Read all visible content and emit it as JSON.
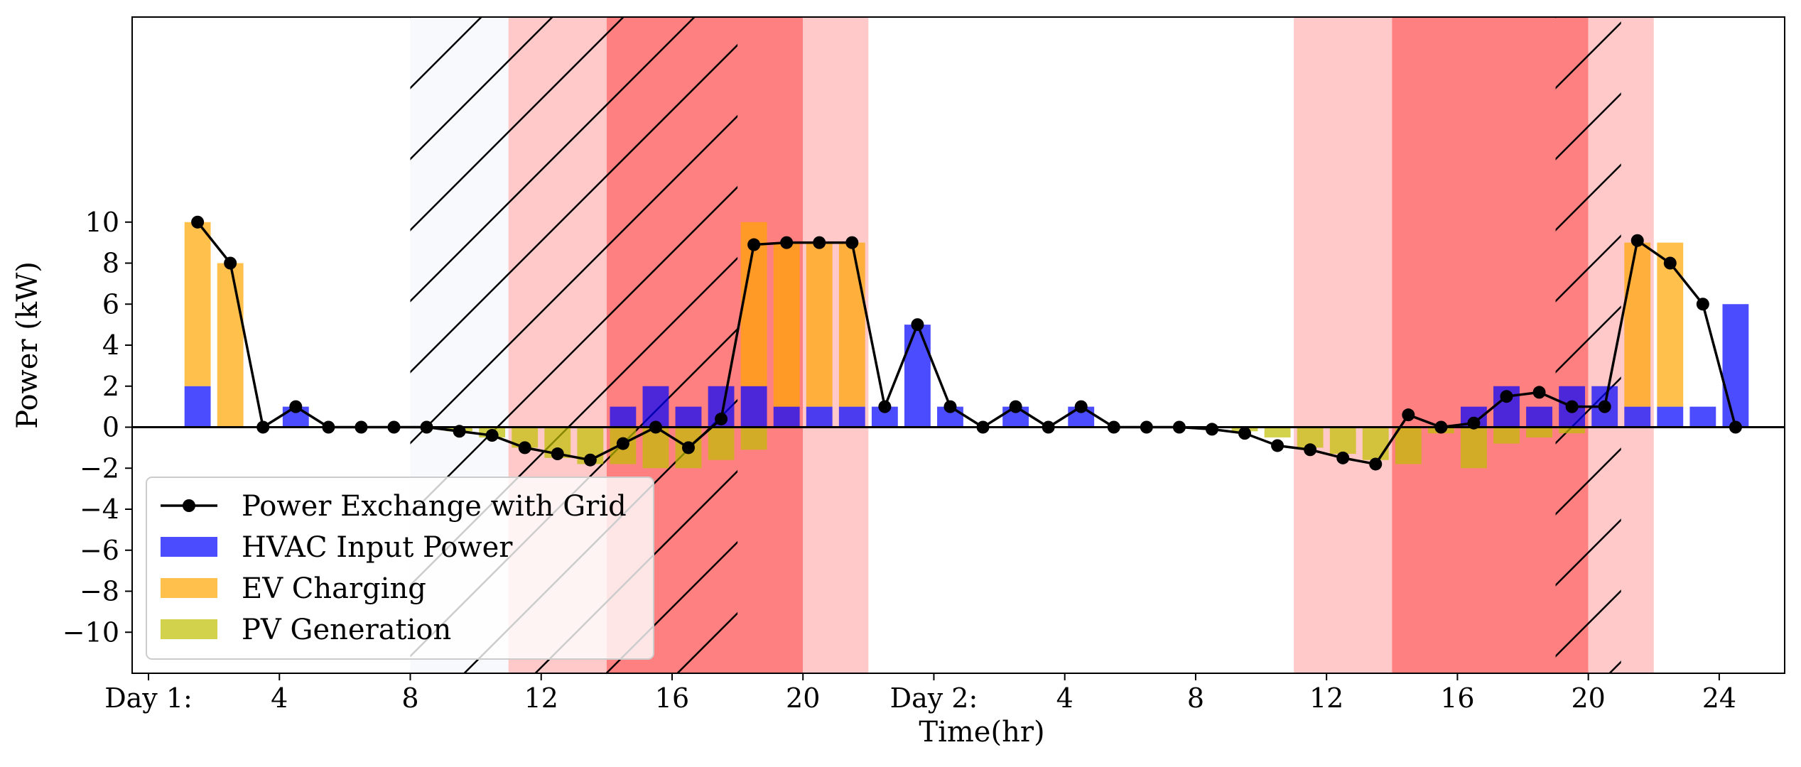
{
  "chart_data": {
    "type": "bar",
    "title": "",
    "xlabel": "Time(hr)",
    "ylabel": "Power (kW)",
    "ylim": [
      -12,
      20
    ],
    "xlim": [
      -1,
      49.5
    ],
    "yticks": [
      -10,
      -8,
      -6,
      -4,
      -2,
      0,
      2,
      4,
      6,
      8,
      10
    ],
    "xticks": [
      {
        "x": -0.5,
        "label": "Day 1:"
      },
      {
        "x": 3.5,
        "label": "4"
      },
      {
        "x": 7.5,
        "label": "8"
      },
      {
        "x": 11.5,
        "label": "12"
      },
      {
        "x": 15.5,
        "label": "16"
      },
      {
        "x": 19.5,
        "label": "20"
      },
      {
        "x": 23.5,
        "label": "Day 2:"
      },
      {
        "x": 27.5,
        "label": "4"
      },
      {
        "x": 31.5,
        "label": "8"
      },
      {
        "x": 35.5,
        "label": "12"
      },
      {
        "x": 39.5,
        "label": "16"
      },
      {
        "x": 43.5,
        "label": "20"
      },
      {
        "x": 47.5,
        "label": "24"
      }
    ],
    "price_bands": [
      {
        "start": 7.5,
        "end": 10.5,
        "level": "off-peak"
      },
      {
        "start": 10.5,
        "end": 13.5,
        "level": "mid-peak"
      },
      {
        "start": 13.5,
        "end": 19.5,
        "level": "on-peak"
      },
      {
        "start": 19.5,
        "end": 21.5,
        "level": "mid-peak"
      },
      {
        "start": 34.5,
        "end": 37.5,
        "level": "mid-peak"
      },
      {
        "start": 37.5,
        "end": 43.5,
        "level": "on-peak"
      },
      {
        "start": 43.5,
        "end": 45.5,
        "level": "mid-peak"
      }
    ],
    "hatched_regions": [
      {
        "start": 7.5,
        "end": 17.5
      },
      {
        "start": 42.5,
        "end": 44.5
      }
    ],
    "x": [
      1,
      2,
      3,
      4,
      5,
      6,
      7,
      8,
      9,
      10,
      11,
      12,
      13,
      14,
      15,
      16,
      17,
      18,
      19,
      20,
      21,
      22,
      23,
      24,
      25,
      26,
      27,
      28,
      29,
      30,
      31,
      32,
      33,
      34,
      35,
      36,
      37,
      38,
      39,
      40,
      41,
      42,
      43,
      44,
      45,
      46,
      47,
      48
    ],
    "series": [
      {
        "name": "HVAC Input Power",
        "kind": "bar",
        "color": "#0000FF",
        "values": [
          2,
          0,
          0,
          1,
          0,
          0,
          0,
          0,
          0,
          0,
          0,
          0,
          0,
          1,
          2,
          1,
          2,
          2,
          1,
          1,
          1,
          1,
          5,
          1,
          0,
          1,
          0,
          1,
          0,
          0,
          0,
          0,
          0,
          0,
          0,
          0,
          0,
          0,
          0,
          1,
          2,
          1,
          2,
          2,
          1,
          1,
          1,
          6
        ]
      },
      {
        "name": "EV Charging",
        "kind": "bar",
        "color": "#FFA500",
        "values": [
          8,
          8,
          0,
          0,
          0,
          0,
          0,
          0,
          0,
          0,
          0,
          0,
          0,
          0,
          0,
          0,
          0,
          8,
          8,
          8,
          8,
          0,
          0,
          0,
          0,
          0,
          0,
          0,
          0,
          0,
          0,
          0,
          0,
          0,
          0,
          0,
          0,
          0,
          0,
          0,
          0,
          0,
          0,
          0,
          8,
          8,
          0,
          0
        ]
      },
      {
        "name": "PV Generation",
        "kind": "bar",
        "color": "#BFBF00",
        "values": [
          0,
          0,
          0,
          0,
          0,
          0,
          0,
          0,
          -0.2,
          -0.5,
          -1.0,
          -1.5,
          -1.8,
          -1.8,
          -2.0,
          -2.0,
          -1.6,
          -1.1,
          0,
          0,
          0,
          0,
          0,
          0,
          0,
          0,
          0,
          0,
          0,
          0,
          0,
          0,
          -0.2,
          -0.5,
          -1.0,
          -1.3,
          -1.6,
          -1.8,
          -0.3,
          -2.0,
          -0.8,
          -0.5,
          -0.3,
          0,
          0,
          0,
          0,
          0
        ]
      },
      {
        "name": "Power Exchange with Grid",
        "kind": "line",
        "color": "#000000",
        "values": [
          10,
          8,
          0,
          1,
          0,
          0,
          0,
          0,
          -0.2,
          -0.4,
          -1.0,
          -1.3,
          -1.6,
          -0.8,
          0,
          -1.0,
          0.4,
          8.9,
          9,
          9,
          9,
          1,
          5,
          1,
          0,
          1,
          0,
          1,
          0,
          0,
          0,
          -0.1,
          -0.3,
          -0.9,
          -1.1,
          -1.5,
          -1.8,
          0.6,
          0,
          0.2,
          1.5,
          1.7,
          1.0,
          1.0,
          9.1,
          8,
          6,
          0
        ]
      }
    ],
    "legend": {
      "placement": "lower-left",
      "entries": [
        "Power Exchange with Grid",
        "HVAC Input Power",
        "EV Charging",
        "PV Generation"
      ]
    }
  },
  "colors": {
    "off_peak": "#F8F9FC",
    "mid_peak": "#FFC9C9",
    "on_peak": "#FF8080",
    "hvac": "#0000FF",
    "ev": "#FFA500",
    "pv": "#BFBF00",
    "line": "#000000"
  }
}
